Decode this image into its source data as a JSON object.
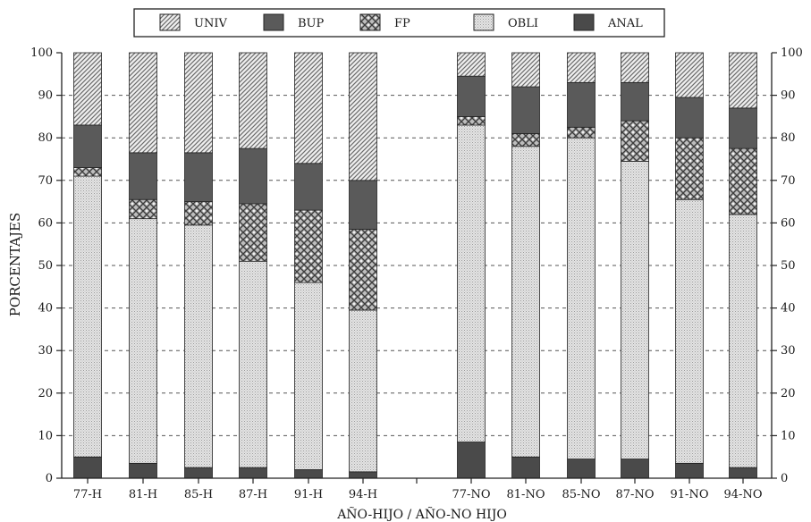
{
  "chart_data": {
    "type": "bar",
    "stacked": true,
    "ylabel": "PORCENTAJES",
    "xlabel": "AÑO-HIJO / AÑO-NO HIJO",
    "ylim": [
      0,
      100
    ],
    "yticks": [
      0,
      10,
      20,
      30,
      40,
      50,
      60,
      70,
      80,
      90,
      100
    ],
    "grid": "horizontal dashed",
    "legend_position": "top",
    "legend": [
      "UNIV",
      "BUP",
      "FP",
      "OBLI",
      "ANAL"
    ],
    "categories": [
      "77-H",
      "81-H",
      "85-H",
      "87-H",
      "91-H",
      "94-H",
      "77-NO",
      "81-NO",
      "85-NO",
      "87-NO",
      "91-NO",
      "94-NO"
    ],
    "series": [
      {
        "name": "ANAL",
        "pattern": "solid-dark",
        "color": "#4a4a4a",
        "values": [
          5,
          3.5,
          2.5,
          2.5,
          2,
          1.5,
          8.5,
          5,
          4.5,
          4.5,
          3.5,
          2.5
        ]
      },
      {
        "name": "OBLI",
        "pattern": "fine-dots",
        "color": "#d6d6d6",
        "values": [
          66,
          57.5,
          57,
          48.5,
          44,
          38,
          74.5,
          73,
          75.5,
          70,
          62,
          59.5
        ]
      },
      {
        "name": "FP",
        "pattern": "crosshatch",
        "color": "#9a9a9a",
        "values": [
          2,
          4.5,
          5.5,
          13.5,
          17,
          19,
          2,
          3,
          2.5,
          9.5,
          14.5,
          15.5
        ]
      },
      {
        "name": "BUP",
        "pattern": "solid-medium",
        "color": "#5c5c5c",
        "values": [
          10,
          11,
          11.5,
          13,
          11,
          11.5,
          9.5,
          11,
          10.5,
          9,
          9.5,
          9.5
        ]
      },
      {
        "name": "UNIV",
        "pattern": "diagonal-lines",
        "color": "#8c8c8c",
        "values": [
          17,
          23.5,
          23.5,
          22.5,
          26,
          30,
          5.5,
          8,
          7,
          7,
          10.5,
          13
        ]
      }
    ]
  }
}
